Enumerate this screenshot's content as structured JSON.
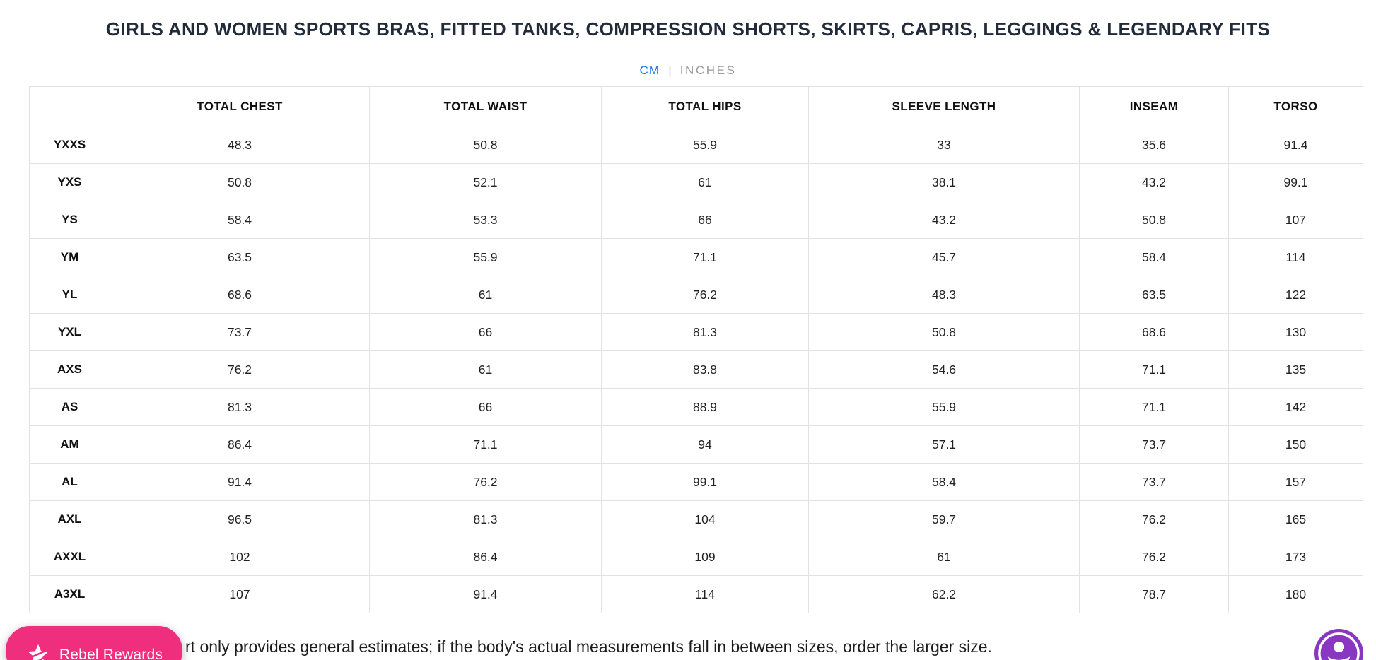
{
  "header": {
    "title": "GIRLS AND WOMEN SPORTS BRAS, FITTED TANKS, COMPRESSION SHORTS, SKIRTS, CAPRIS, LEGGINGS & LEGENDARY FITS"
  },
  "unit_toggle": {
    "options": [
      {
        "label": "CM",
        "active": true
      },
      {
        "label": "INCHES",
        "active": false
      }
    ],
    "separator": "|",
    "active_color": "#1a73e8",
    "inactive_color": "#9b9b9b"
  },
  "table": {
    "columns": [
      "",
      "TOTAL CHEST",
      "TOTAL WAIST",
      "TOTAL HIPS",
      "SLEEVE LENGTH",
      "INSEAM",
      "TORSO"
    ],
    "rows": [
      {
        "size": "YXXS",
        "values": [
          "48.3",
          "50.8",
          "55.9",
          "33",
          "35.6",
          "91.4"
        ]
      },
      {
        "size": "YXS",
        "values": [
          "50.8",
          "52.1",
          "61",
          "38.1",
          "43.2",
          "99.1"
        ]
      },
      {
        "size": "YS",
        "values": [
          "58.4",
          "53.3",
          "66",
          "43.2",
          "50.8",
          "107"
        ]
      },
      {
        "size": "YM",
        "values": [
          "63.5",
          "55.9",
          "71.1",
          "45.7",
          "58.4",
          "114"
        ]
      },
      {
        "size": "YL",
        "values": [
          "68.6",
          "61",
          "76.2",
          "48.3",
          "63.5",
          "122"
        ]
      },
      {
        "size": "YXL",
        "values": [
          "73.7",
          "66",
          "81.3",
          "50.8",
          "68.6",
          "130"
        ]
      },
      {
        "size": "AXS",
        "values": [
          "76.2",
          "61",
          "83.8",
          "54.6",
          "71.1",
          "135"
        ]
      },
      {
        "size": "AS",
        "values": [
          "81.3",
          "66",
          "88.9",
          "55.9",
          "71.1",
          "142"
        ]
      },
      {
        "size": "AM",
        "values": [
          "86.4",
          "71.1",
          "94",
          "57.1",
          "73.7",
          "150"
        ]
      },
      {
        "size": "AL",
        "values": [
          "91.4",
          "76.2",
          "99.1",
          "58.4",
          "73.7",
          "157"
        ]
      },
      {
        "size": "AXL",
        "values": [
          "96.5",
          "81.3",
          "104",
          "59.7",
          "76.2",
          "165"
        ]
      },
      {
        "size": "AXXL",
        "values": [
          "102",
          "86.4",
          "109",
          "61",
          "76.2",
          "173"
        ]
      },
      {
        "size": "A3XL",
        "values": [
          "107",
          "91.4",
          "114",
          "62.2",
          "78.7",
          "180"
        ]
      }
    ]
  },
  "footnote": {
    "visible_text": "rt only provides general estimates; if the body's actual measurements fall in between sizes, order the larger size."
  },
  "rewards_button": {
    "label": "Rebel Rewards",
    "background_color": "#EF2F7E"
  },
  "accessibility_widget": {
    "background_color": "#8936C0"
  }
}
